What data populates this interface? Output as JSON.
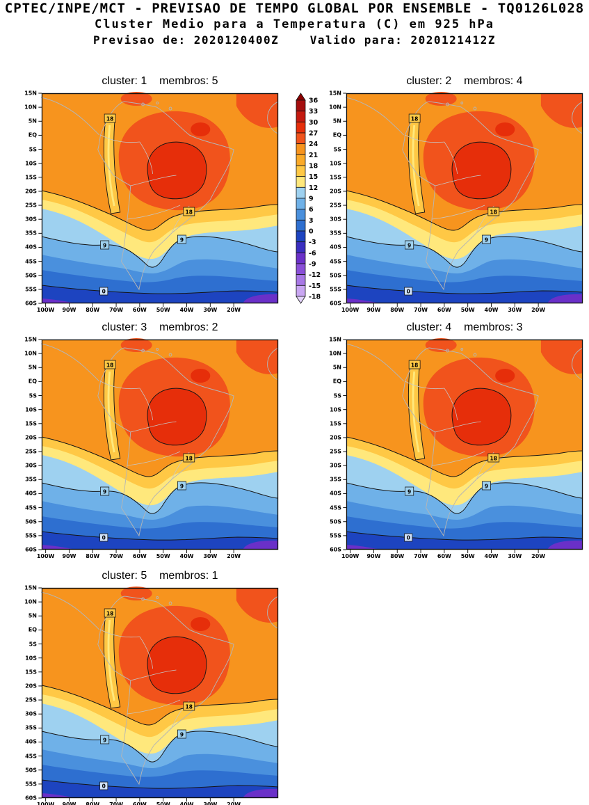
{
  "header": {
    "line1": "CPTEC/INPE/MCT - PREVISAO DE TEMPO GLOBAL POR ENSEMBLE - TQ0126L028",
    "line2": "Cluster Medio para a Temperatura (C) em 925 hPa",
    "line3": "Previsao de: 2020120400Z    Valido para: 2020121412Z"
  },
  "panels": [
    {
      "title": "cluster: 1    membros: 5",
      "cluster": 1,
      "membros": 5
    },
    {
      "title": "cluster: 2    membros: 4",
      "cluster": 2,
      "membros": 4
    },
    {
      "title": "cluster: 3    membros: 2",
      "cluster": 3,
      "membros": 2
    },
    {
      "title": "cluster: 4    membros: 3",
      "cluster": 4,
      "membros": 3
    },
    {
      "title": "cluster: 5    membros: 1",
      "cluster": 5,
      "membros": 1
    }
  ],
  "axes": {
    "lat_ticks": [
      "15N",
      "10N",
      "5N",
      "EQ",
      "5S",
      "10S",
      "15S",
      "20S",
      "25S",
      "30S",
      "35S",
      "40S",
      "45S",
      "50S",
      "55S",
      "60S"
    ],
    "lon_ticks": [
      "100W",
      "90W",
      "80W",
      "70W",
      "60W",
      "50W",
      "40W",
      "30W",
      "20W"
    ]
  },
  "colorbar": {
    "levels": [
      36,
      33,
      30,
      27,
      24,
      21,
      18,
      15,
      12,
      9,
      6,
      3,
      0,
      -3,
      -6,
      -9,
      -12,
      -15,
      -18
    ],
    "colors": [
      "#8b0000",
      "#a50f0f",
      "#c41a10",
      "#e62e0a",
      "#f1531c",
      "#f7941e",
      "#fbaa28",
      "#ffc845",
      "#ffe87c",
      "#9ed1f0",
      "#6fb1e8",
      "#4a90dd",
      "#2e6fd0",
      "#1d44c0",
      "#3a2ec0",
      "#6a30c8",
      "#8a4fd8",
      "#a878e6",
      "#c9a6f2",
      "#e3d3fa"
    ]
  },
  "map": {
    "contour_label_values": [
      "18",
      "18",
      "9",
      "9",
      "0"
    ]
  },
  "chart_data": {
    "type": "heatmap",
    "title": "Cluster Medio para a Temperatura (C) em 925 hPa",
    "source": "CPTEC/INPE/MCT - PREVISAO DE TEMPO GLOBAL POR ENSEMBLE - TQ0126L028",
    "init": "2020120400Z",
    "valid": "2020121412Z",
    "variable": "Temperatura",
    "units": "C",
    "pressure_level_hPa": 925,
    "lon_range": [
      "100W",
      "20W"
    ],
    "lat_range": [
      "15N",
      "60S"
    ],
    "contour_interval_c": 3,
    "color_levels_c": [
      36,
      33,
      30,
      27,
      24,
      21,
      18,
      15,
      12,
      9,
      6,
      3,
      0,
      -3,
      -6,
      -9,
      -12,
      -15,
      -18
    ],
    "labeled_contours_c": [
      18,
      9,
      0
    ],
    "panels": [
      {
        "cluster": 1,
        "membros": 5
      },
      {
        "cluster": 2,
        "membros": 4
      },
      {
        "cluster": 3,
        "membros": 2
      },
      {
        "cluster": 4,
        "membros": 3
      },
      {
        "cluster": 5,
        "membros": 1
      }
    ],
    "field_summary": "All clusters: 21-30C over tropical South America with 27-30C maxima over central Brazil, a cool 15-18C strip along the Andes, a 12-18C band near 25S-40S, 0-12C over Patagonia and the Southern Ocean, and below 0C with -3 to -9C (purple) near 60S."
  }
}
